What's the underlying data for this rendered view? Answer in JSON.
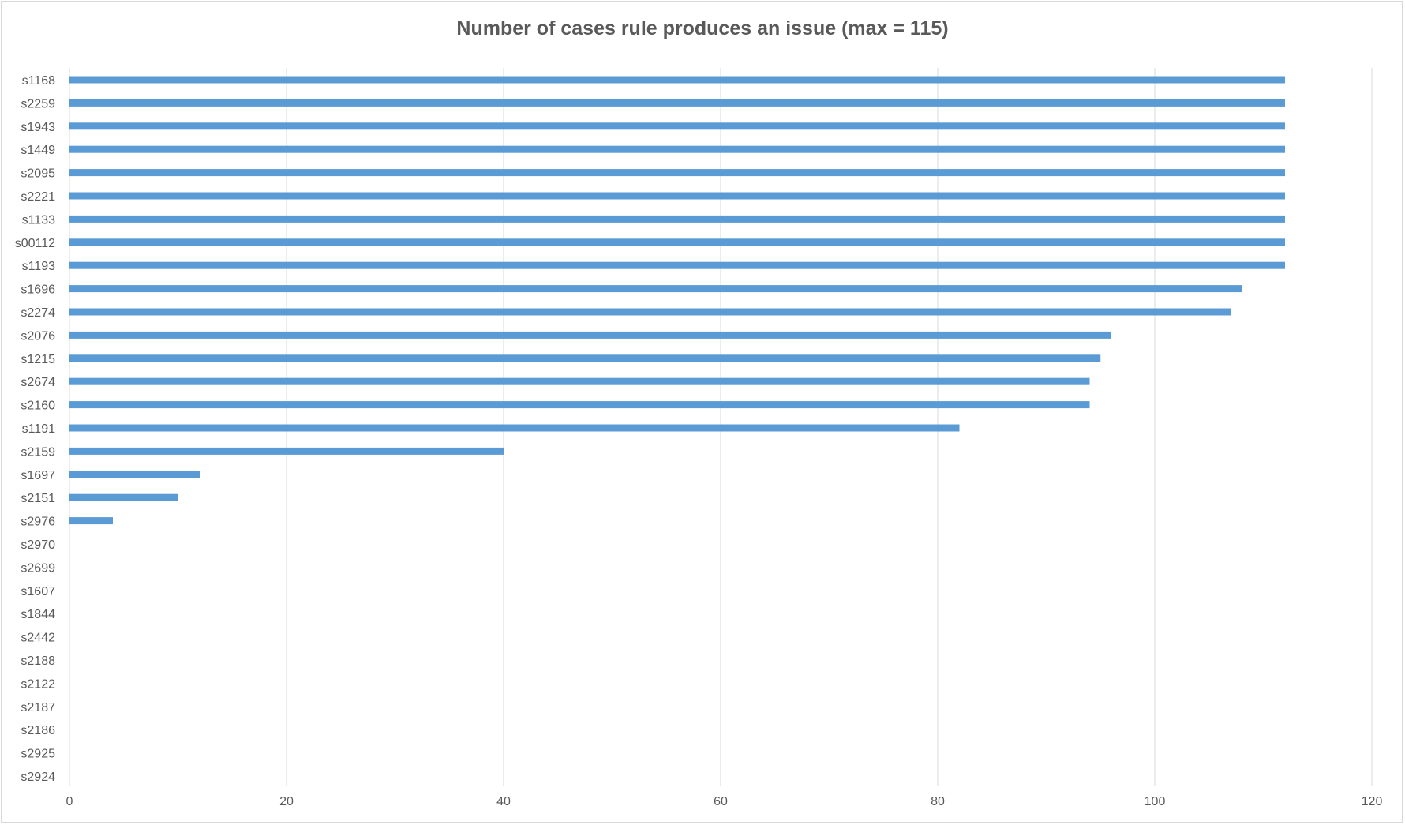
{
  "chart_data": {
    "type": "bar",
    "orientation": "horizontal",
    "title": "Number of cases rule produces an issue (max = 115)",
    "xlabel": "",
    "ylabel": "",
    "xlim": [
      0,
      120
    ],
    "x_ticks": [
      "0",
      "20",
      "40",
      "60",
      "80",
      "100",
      "120"
    ],
    "grid": true,
    "legend": "none",
    "bar_color": "#5b9bd5",
    "categories": [
      "s1168",
      "s2259",
      "s1943",
      "s1449",
      "s2095",
      "s2221",
      "s1133",
      "s00112",
      "s1193",
      "s1696",
      "s2274",
      "s2076",
      "s1215",
      "s2674",
      "s2160",
      "s1191",
      "s2159",
      "s1697",
      "s2151",
      "s2976",
      "s2970",
      "s2699",
      "s1607",
      "s1844",
      "s2442",
      "s2188",
      "s2122",
      "s2187",
      "s2186",
      "s2925",
      "s2924"
    ],
    "values": [
      112,
      112,
      112,
      112,
      112,
      112,
      112,
      112,
      112,
      108,
      107,
      96,
      95,
      94,
      94,
      82,
      40,
      12,
      10,
      4,
      0,
      0,
      0,
      0,
      0,
      0,
      0,
      0,
      0,
      0,
      0
    ]
  }
}
